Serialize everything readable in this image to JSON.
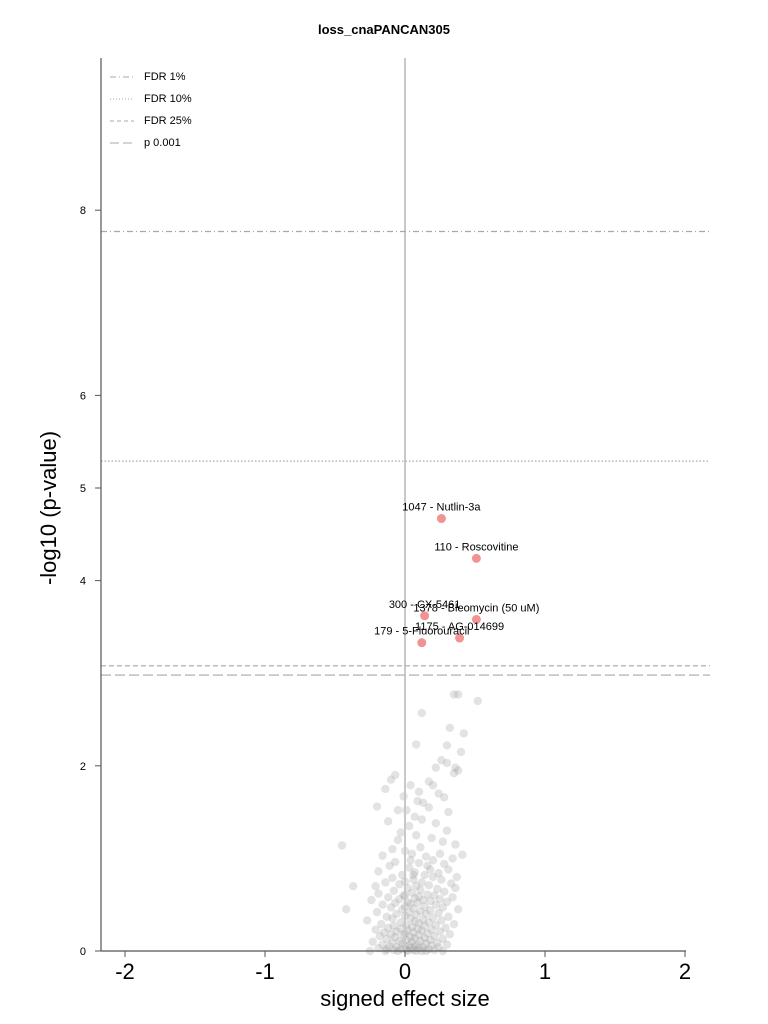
{
  "chart_data": {
    "type": "scatter",
    "title": "loss_cnaPANCAN305",
    "xlabel": "signed effect size",
    "ylabel": "-log10 (p-value)",
    "xlim": [
      -2.2,
      2.2
    ],
    "ylim": [
      0,
      9.7
    ],
    "x_ticks": [
      -2,
      -1,
      0,
      1,
      2
    ],
    "x_tick_labels": [
      "-2",
      "-1",
      "0",
      "1",
      "2"
    ],
    "y_ticks": [
      0,
      2,
      4,
      5,
      6,
      8
    ],
    "y_tick_labels": [
      "0",
      "2",
      "4",
      "5",
      "6",
      "8"
    ],
    "legend": {
      "position": "top-left",
      "entries": [
        {
          "label": "FDR 1%",
          "style": "dashdot"
        },
        {
          "label": "FDR 10%",
          "style": "dotted"
        },
        {
          "label": "FDR 25%",
          "style": "dashed"
        },
        {
          "label": "p 0.001",
          "style": "longdash"
        }
      ]
    },
    "thresholds": [
      {
        "name": "FDR 1%",
        "y": 7.77,
        "style": "dashdot"
      },
      {
        "name": "FDR 10%",
        "y": 5.29,
        "style": "dotted"
      },
      {
        "name": "FDR 25%",
        "y": 3.08,
        "style": "dashed"
      },
      {
        "name": "p 0.001",
        "y": 2.98,
        "style": "longdash"
      }
    ],
    "zero_line_x": 0,
    "significant_points": [
      {
        "x": 0.26,
        "y": 4.67,
        "label": "1047 - Nutlin-3a"
      },
      {
        "x": 0.51,
        "y": 4.24,
        "label": "110 - Roscovitine"
      },
      {
        "x": 0.14,
        "y": 3.62,
        "label": "300 - CX-5461"
      },
      {
        "x": 0.51,
        "y": 3.58,
        "label": "1378 - Bleomycin (50 uM)"
      },
      {
        "x": 0.39,
        "y": 3.38,
        "label": "1175 - AG-014699"
      },
      {
        "x": 0.12,
        "y": 3.33,
        "label": "179 - 5-Fluorouracil"
      }
    ],
    "background_points": [
      [
        0.35,
        2.77
      ],
      [
        0.38,
        2.77
      ],
      [
        0.52,
        2.7
      ],
      [
        0.12,
        2.57
      ],
      [
        0.32,
        2.41
      ],
      [
        0.42,
        2.35
      ],
      [
        0.08,
        2.23
      ],
      [
        0.3,
        2.22
      ],
      [
        0.4,
        2.15
      ],
      [
        0.26,
        2.06
      ],
      [
        0.3,
        2.03
      ],
      [
        0.22,
        1.98
      ],
      [
        0.36,
        1.98
      ],
      [
        0.35,
        1.92
      ],
      [
        0.38,
        1.95
      ],
      [
        -0.07,
        1.9
      ],
      [
        -0.1,
        1.85
      ],
      [
        0.17,
        1.83
      ],
      [
        0.04,
        1.79
      ],
      [
        0.2,
        1.79
      ],
      [
        -0.14,
        1.75
      ],
      [
        0.1,
        1.72
      ],
      [
        0.24,
        1.7
      ],
      [
        -0.01,
        1.67
      ],
      [
        0.28,
        1.66
      ],
      [
        0.13,
        1.6
      ],
      [
        -0.2,
        1.56
      ],
      [
        0.17,
        1.55
      ],
      [
        -0.05,
        1.52
      ],
      [
        0.01,
        1.52
      ],
      [
        0.31,
        1.5
      ],
      [
        0.07,
        1.45
      ],
      [
        0.12,
        1.42
      ],
      [
        -0.12,
        1.4
      ],
      [
        0.22,
        1.38
      ],
      [
        0.03,
        1.35
      ],
      [
        0.3,
        1.3
      ],
      [
        -0.03,
        1.28
      ],
      [
        0.08,
        1.25
      ],
      [
        0.19,
        1.22
      ],
      [
        0.27,
        1.18
      ],
      [
        0.36,
        1.15
      ],
      [
        0.11,
        1.12
      ],
      [
        -0.45,
        1.14
      ],
      [
        -0.09,
        1.1
      ],
      [
        0.0,
        1.08
      ],
      [
        0.25,
        1.05
      ],
      [
        0.05,
        1.05
      ],
      [
        -0.16,
        1.03
      ],
      [
        0.15,
        1.02
      ],
      [
        0.41,
        1.04
      ],
      [
        0.34,
        1.0
      ],
      [
        0.2,
        0.98
      ],
      [
        -0.07,
        0.96
      ],
      [
        0.1,
        0.95
      ],
      [
        0.28,
        0.94
      ],
      [
        -0.11,
        0.92
      ],
      [
        0.03,
        0.9
      ],
      [
        0.18,
        0.88
      ],
      [
        0.31,
        0.88
      ],
      [
        -0.19,
        0.86
      ],
      [
        0.07,
        0.85
      ],
      [
        0.24,
        0.84
      ],
      [
        0.14,
        0.82
      ],
      [
        -0.02,
        0.82
      ],
      [
        0.2,
        0.8
      ],
      [
        0.37,
        0.8
      ],
      [
        -0.09,
        0.79
      ],
      [
        0.06,
        0.77
      ],
      [
        0.26,
        0.77
      ],
      [
        0.0,
        0.75
      ],
      [
        0.12,
        0.74
      ],
      [
        -0.14,
        0.74
      ],
      [
        0.33,
        0.73
      ],
      [
        -0.04,
        0.72
      ],
      [
        0.17,
        0.71
      ],
      [
        0.08,
        0.7
      ],
      [
        -0.37,
        0.7
      ],
      [
        0.36,
        0.68
      ],
      [
        0.02,
        0.68
      ],
      [
        0.23,
        0.67
      ],
      [
        0.11,
        0.66
      ],
      [
        -0.08,
        0.65
      ],
      [
        0.28,
        0.64
      ],
      [
        0.05,
        0.63
      ],
      [
        -0.19,
        0.62
      ],
      [
        0.16,
        0.61
      ],
      [
        0.0,
        0.6
      ],
      [
        0.21,
        0.6
      ],
      [
        0.1,
        0.59
      ],
      [
        -0.12,
        0.58
      ],
      [
        0.34,
        0.58
      ],
      [
        0.07,
        0.57
      ],
      [
        -0.04,
        0.56
      ],
      [
        0.25,
        0.56
      ],
      [
        0.13,
        0.55
      ],
      [
        -0.24,
        0.55
      ],
      [
        0.18,
        0.54
      ],
      [
        0.02,
        0.53
      ],
      [
        0.3,
        0.53
      ],
      [
        -0.07,
        0.52
      ],
      [
        0.09,
        0.52
      ],
      [
        0.04,
        0.51
      ],
      [
        -0.16,
        0.5
      ],
      [
        0.22,
        0.5
      ],
      [
        0.0,
        0.48
      ],
      [
        0.14,
        0.48
      ],
      [
        -0.1,
        0.47
      ],
      [
        0.27,
        0.47
      ],
      [
        0.06,
        0.46
      ],
      [
        -0.02,
        0.45
      ],
      [
        0.38,
        0.45
      ],
      [
        -0.42,
        0.45
      ],
      [
        0.18,
        0.44
      ],
      [
        0.11,
        0.43
      ],
      [
        -0.2,
        0.42
      ],
      [
        0.03,
        0.42
      ],
      [
        0.24,
        0.41
      ],
      [
        -0.06,
        0.4
      ],
      [
        0.15,
        0.4
      ],
      [
        0.08,
        0.39
      ],
      [
        0.0,
        0.38
      ],
      [
        -0.13,
        0.37
      ],
      [
        0.31,
        0.37
      ],
      [
        0.2,
        0.36
      ],
      [
        0.04,
        0.35
      ],
      [
        -0.09,
        0.35
      ],
      [
        0.13,
        0.34
      ],
      [
        -0.27,
        0.33
      ],
      [
        0.26,
        0.33
      ],
      [
        0.07,
        0.32
      ],
      [
        -0.03,
        0.31
      ],
      [
        0.17,
        0.31
      ],
      [
        0.1,
        0.3
      ],
      [
        -0.17,
        0.29
      ],
      [
        0.35,
        0.29
      ],
      [
        0.01,
        0.28
      ],
      [
        0.22,
        0.28
      ],
      [
        -0.08,
        0.27
      ],
      [
        0.14,
        0.27
      ],
      [
        0.05,
        0.26
      ],
      [
        -0.12,
        0.25
      ],
      [
        0.29,
        0.25
      ],
      [
        0.09,
        0.24
      ],
      [
        -0.03,
        0.24
      ],
      [
        0.19,
        0.23
      ],
      [
        -0.21,
        0.23
      ],
      [
        0.02,
        0.22
      ],
      [
        0.12,
        0.22
      ],
      [
        -0.06,
        0.21
      ],
      [
        0.25,
        0.21
      ],
      [
        0.06,
        0.2
      ],
      [
        -0.15,
        0.2
      ],
      [
        0.16,
        0.19
      ],
      [
        0.0,
        0.19
      ],
      [
        -0.1,
        0.18
      ],
      [
        0.32,
        0.18
      ],
      [
        0.1,
        0.17
      ],
      [
        -0.01,
        0.17
      ],
      [
        0.21,
        0.16
      ],
      [
        -0.18,
        0.16
      ],
      [
        0.04,
        0.15
      ],
      [
        -0.07,
        0.15
      ],
      [
        0.14,
        0.14
      ],
      [
        0.07,
        0.14
      ],
      [
        -0.13,
        0.13
      ],
      [
        0.27,
        0.13
      ],
      [
        0.01,
        0.12
      ],
      [
        0.18,
        0.12
      ],
      [
        -0.04,
        0.11
      ],
      [
        0.11,
        0.11
      ],
      [
        -0.23,
        0.1
      ],
      [
        0.05,
        0.1
      ],
      [
        0.23,
        0.09
      ],
      [
        -0.09,
        0.09
      ],
      [
        0.15,
        0.08
      ],
      [
        -0.02,
        0.08
      ],
      [
        0.09,
        0.07
      ],
      [
        -0.16,
        0.07
      ],
      [
        0.3,
        0.07
      ],
      [
        0.03,
        0.06
      ],
      [
        0.19,
        0.06
      ],
      [
        -0.11,
        0.05
      ],
      [
        0.07,
        0.05
      ],
      [
        0.0,
        0.05
      ],
      [
        0.13,
        0.04
      ],
      [
        -0.06,
        0.04
      ],
      [
        0.24,
        0.04
      ],
      [
        -0.19,
        0.03
      ],
      [
        0.04,
        0.03
      ],
      [
        0.1,
        0.03
      ],
      [
        -0.03,
        0.02
      ],
      [
        0.17,
        0.02
      ],
      [
        -0.13,
        0.02
      ],
      [
        0.06,
        0.01
      ],
      [
        0.01,
        0.01
      ],
      [
        0.21,
        0.01
      ],
      [
        -0.08,
        0.01
      ],
      [
        0.12,
        0.0
      ],
      [
        -0.25,
        0.0
      ],
      [
        -0.05,
        0.0
      ],
      [
        0.08,
        0.0
      ],
      [
        0.02,
        0.0
      ],
      [
        0.15,
        0.0
      ],
      [
        -0.14,
        0.0
      ],
      [
        0.27,
        0.0
      ],
      [
        -0.01,
        0.6
      ],
      [
        0.06,
        0.82
      ],
      [
        -0.05,
        1.2
      ],
      [
        0.16,
        0.92
      ],
      [
        -0.21,
        0.7
      ],
      [
        0.09,
        1.62
      ],
      [
        0.04,
        0.98
      ]
    ]
  }
}
